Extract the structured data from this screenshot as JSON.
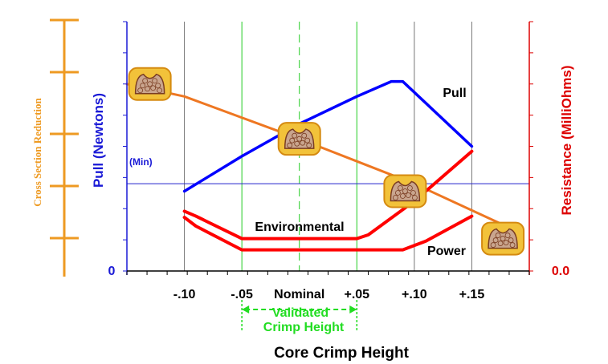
{
  "chart_data": {
    "type": "line",
    "title": "",
    "xlabel": "Core Crimp Height",
    "ylabel_left": "Pull (Newtons)",
    "ylabel_right": "Resistance (MilliOhms)",
    "ylabel_far_left": "Cross Section Reduction",
    "x_ticks": [
      {
        "x": -0.1,
        "label": "-.10"
      },
      {
        "x": -0.05,
        "label": "-.05"
      },
      {
        "x": 0.0,
        "label": "Nominal"
      },
      {
        "x": 0.05,
        "label": "+.05"
      },
      {
        "x": 0.1,
        "label": "+.10"
      },
      {
        "x": 0.15,
        "label": "+.15"
      }
    ],
    "xlim": [
      -0.15,
      0.2
    ],
    "ylim": [
      0,
      10
    ],
    "left_axis_zero_label": "0",
    "right_axis_zero_label": "0.0",
    "min_line": {
      "y": 3.5,
      "label": "(Min)"
    },
    "validated_range": {
      "x": [
        -0.05,
        0.05
      ],
      "label_line1": "Validated",
      "label_line2": "Crimp Height"
    },
    "series": [
      {
        "name": "Pull",
        "color": "#0000ff",
        "points": [
          [
            -0.1,
            3.2
          ],
          [
            -0.05,
            4.6
          ],
          [
            0.0,
            5.9
          ],
          [
            0.05,
            7.0
          ],
          [
            0.08,
            7.6
          ],
          [
            0.09,
            7.6
          ],
          [
            0.15,
            5.0
          ]
        ]
      },
      {
        "name": "Cross Section Reduction",
        "color": "#ee7722",
        "points": [
          [
            -0.15,
            7.5
          ],
          [
            -0.1,
            7.0
          ],
          [
            0.0,
            5.3
          ],
          [
            0.05,
            4.4
          ],
          [
            0.1,
            3.5
          ],
          [
            0.175,
            1.9
          ]
        ]
      },
      {
        "name": "Environmental",
        "color": "#ff0000",
        "points": [
          [
            -0.1,
            2.4
          ],
          [
            -0.09,
            2.2
          ],
          [
            -0.05,
            1.3
          ],
          [
            0.05,
            1.3
          ],
          [
            0.06,
            1.45
          ],
          [
            0.1,
            2.8
          ],
          [
            0.15,
            4.8
          ]
        ]
      },
      {
        "name": "Power",
        "color": "#ff0000",
        "points": [
          [
            -0.1,
            2.15
          ],
          [
            -0.09,
            1.8
          ],
          [
            -0.05,
            0.85
          ],
          [
            0.0,
            0.85
          ],
          [
            0.09,
            0.85
          ],
          [
            0.11,
            1.2
          ],
          [
            0.15,
            2.2
          ]
        ]
      }
    ],
    "series_labels": {
      "pull": "Pull",
      "environmental": "Environmental",
      "power": "Power"
    },
    "cross_sections": [
      {
        "x": -0.13,
        "y": 7.5,
        "name": "cross-section-1"
      },
      {
        "x": 0.0,
        "y": 5.3,
        "name": "cross-section-2"
      },
      {
        "x": 0.092,
        "y": 3.2,
        "name": "cross-section-3"
      },
      {
        "x": 0.177,
        "y": 1.3,
        "name": "cross-section-4"
      }
    ],
    "grid": "vertical",
    "legend": "none"
  }
}
